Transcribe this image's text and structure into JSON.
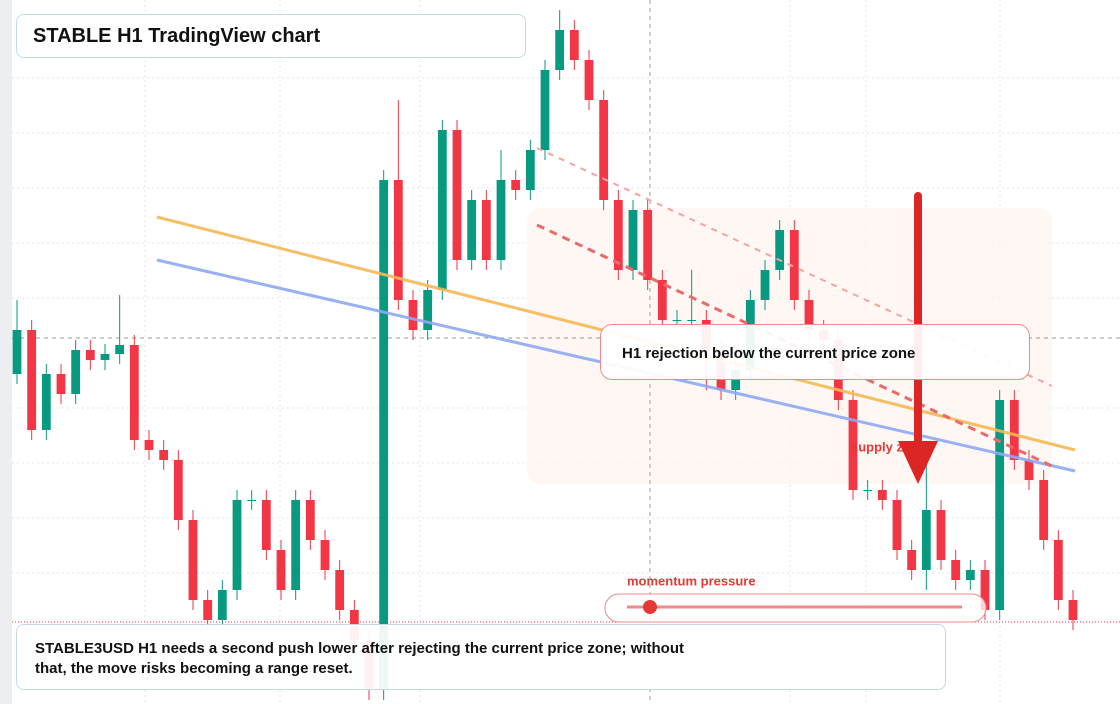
{
  "header": {
    "title": "STABLE H1 TradingView chart"
  },
  "chart_data": {
    "type": "candlestick",
    "open": [
      330,
      374,
      274,
      330,
      310,
      354,
      344,
      350,
      359,
      264,
      254,
      244,
      184,
      104,
      84,
      114,
      204,
      204,
      154,
      114,
      204,
      164,
      134,
      94,
      64,
      14,
      524,
      404,
      374,
      414,
      574,
      444,
      504,
      444,
      524,
      514,
      554,
      634,
      674,
      644,
      604,
      504,
      434,
      494,
      424,
      384,
      384,
      384,
      354,
      314,
      334,
      404,
      434,
      474,
      404,
      374,
      364,
      304,
      214,
      214,
      204,
      154,
      134,
      194,
      144,
      124,
      134,
      94,
      304,
      244,
      224,
      164,
      104
    ],
    "high": [
      404,
      384,
      340,
      340,
      364,
      364,
      360,
      409,
      369,
      274,
      264,
      254,
      194,
      114,
      124,
      214,
      214,
      214,
      164,
      214,
      214,
      174,
      144,
      104,
      74,
      534,
      604,
      414,
      424,
      584,
      584,
      514,
      514,
      554,
      534,
      564,
      644,
      694,
      684,
      654,
      614,
      514,
      504,
      504,
      434,
      394,
      434,
      394,
      364,
      344,
      414,
      444,
      484,
      484,
      414,
      384,
      374,
      314,
      224,
      224,
      214,
      164,
      244,
      204,
      154,
      144,
      144,
      314,
      314,
      254,
      234,
      174,
      114
    ],
    "low": [
      320,
      264,
      264,
      300,
      300,
      334,
      334,
      340,
      254,
      244,
      234,
      174,
      94,
      74,
      74,
      104,
      194,
      144,
      104,
      104,
      154,
      124,
      84,
      54,
      4,
      4,
      394,
      364,
      364,
      404,
      434,
      434,
      434,
      434,
      504,
      504,
      544,
      624,
      634,
      594,
      494,
      424,
      424,
      414,
      374,
      374,
      374,
      314,
      304,
      304,
      324,
      394,
      424,
      394,
      364,
      354,
      294,
      204,
      204,
      194,
      144,
      124,
      114,
      134,
      114,
      114,
      84,
      84,
      234,
      214,
      154,
      94,
      74
    ],
    "close": [
      374,
      274,
      330,
      310,
      354,
      344,
      350,
      359,
      264,
      254,
      244,
      184,
      104,
      84,
      114,
      204,
      204,
      154,
      114,
      204,
      164,
      134,
      94,
      64,
      14,
      524,
      404,
      374,
      414,
      574,
      444,
      504,
      444,
      524,
      514,
      554,
      634,
      674,
      644,
      604,
      504,
      434,
      494,
      424,
      384,
      384,
      384,
      354,
      314,
      334,
      404,
      434,
      474,
      404,
      374,
      364,
      304,
      214,
      214,
      204,
      154,
      134,
      194,
      144,
      124,
      134,
      94,
      304,
      244,
      224,
      164,
      104,
      84
    ],
    "up_color": "#089981",
    "down_color": "#f23645",
    "annotation": "H1 rejection below the current price zone",
    "zone_label": "supply zone",
    "momentum_label": "momentum pressure"
  },
  "note": "STABLE3USD H1 needs a second push lower after rejecting the current price zone; without that, the move risks becoming a range reset."
}
